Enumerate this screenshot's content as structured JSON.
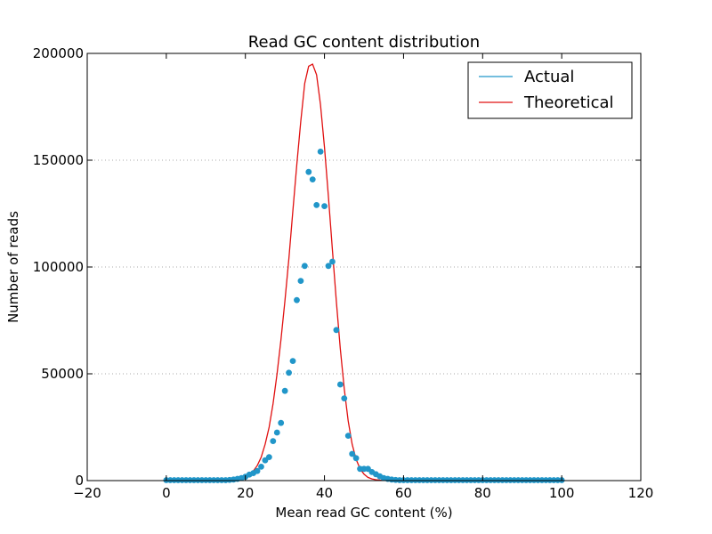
{
  "chart_data": {
    "type": "scatter",
    "title": "Read GC content distribution",
    "xlabel": "Mean read GC content (%)",
    "ylabel": "Number of reads",
    "xlim": [
      -20,
      120
    ],
    "ylim": [
      0,
      200000
    ],
    "x_ticks": [
      -20,
      0,
      20,
      40,
      60,
      80,
      100,
      120
    ],
    "x_tick_labels": [
      "−20",
      "0",
      "20",
      "40",
      "60",
      "80",
      "100",
      "120"
    ],
    "y_ticks": [
      0,
      50000,
      100000,
      150000,
      200000
    ],
    "y_tick_labels": [
      "0",
      "50000",
      "100000",
      "150000",
      "200000"
    ],
    "grid": "horizontal dotted",
    "legend_position": "top-right",
    "colors": {
      "actual": "#2196c9",
      "theoretical": "#e01010"
    },
    "series": [
      {
        "name": "Actual",
        "style": "markers",
        "x": [
          0,
          1,
          2,
          3,
          4,
          5,
          6,
          7,
          8,
          9,
          10,
          11,
          12,
          13,
          14,
          15,
          16,
          17,
          18,
          19,
          20,
          21,
          22,
          23,
          24,
          25,
          26,
          27,
          28,
          29,
          30,
          31,
          32,
          33,
          34,
          35,
          36,
          37,
          38,
          39,
          40,
          41,
          42,
          43,
          44,
          45,
          46,
          47,
          48,
          49,
          50,
          51,
          52,
          53,
          54,
          55,
          56,
          57,
          58,
          59,
          60,
          61,
          62,
          63,
          64,
          65,
          66,
          67,
          68,
          69,
          70,
          71,
          72,
          73,
          74,
          75,
          76,
          77,
          78,
          79,
          80,
          81,
          82,
          83,
          84,
          85,
          86,
          87,
          88,
          89,
          90,
          91,
          92,
          93,
          94,
          95,
          96,
          97,
          98,
          99,
          100
        ],
        "y": [
          200,
          200,
          200,
          200,
          200,
          200,
          200,
          200,
          200,
          200,
          200,
          200,
          200,
          200,
          200,
          200,
          300,
          500,
          800,
          1200,
          1800,
          2800,
          3500,
          4500,
          6500,
          9500,
          11000,
          18500,
          22500,
          27000,
          42000,
          50500,
          56000,
          84500,
          93500,
          100500,
          144500,
          141000,
          129000,
          154000,
          128500,
          100500,
          102500,
          70500,
          45000,
          38500,
          21000,
          12500,
          10500,
          5500,
          5500,
          5500,
          4000,
          3000,
          2000,
          1200,
          800,
          500,
          300,
          200,
          200,
          200,
          200,
          200,
          200,
          200,
          200,
          200,
          200,
          200,
          200,
          200,
          200,
          200,
          200,
          200,
          200,
          200,
          200,
          200,
          200,
          200,
          200,
          200,
          200,
          200,
          200,
          200,
          200,
          200,
          200,
          200,
          200,
          200,
          200,
          200,
          200,
          200,
          200,
          200,
          200
        ]
      },
      {
        "name": "Theoretical",
        "style": "line",
        "x": [
          0,
          5,
          10,
          15,
          16,
          17,
          18,
          19,
          20,
          21,
          22,
          23,
          24,
          25,
          26,
          27,
          28,
          29,
          30,
          31,
          32,
          33,
          34,
          35,
          36,
          37,
          38,
          39,
          40,
          41,
          42,
          43,
          44,
          45,
          46,
          47,
          48,
          49,
          50,
          51,
          52,
          53,
          54,
          55,
          56,
          57,
          58,
          60,
          65,
          70,
          80,
          90,
          100
        ],
        "y": [
          0,
          0,
          0,
          100,
          200,
          400,
          700,
          1200,
          2000,
          3000,
          4500,
          7000,
          11000,
          17000,
          25000,
          36000,
          50000,
          66000,
          84000,
          104000,
          126000,
          148000,
          168000,
          186000,
          194000,
          195000,
          190000,
          176000,
          156000,
          133000,
          108000,
          84000,
          62000,
          43000,
          28000,
          17000,
          10000,
          5500,
          3000,
          1500,
          800,
          400,
          200,
          100,
          50,
          20,
          10,
          0,
          0,
          0,
          0,
          0,
          0
        ]
      }
    ]
  }
}
